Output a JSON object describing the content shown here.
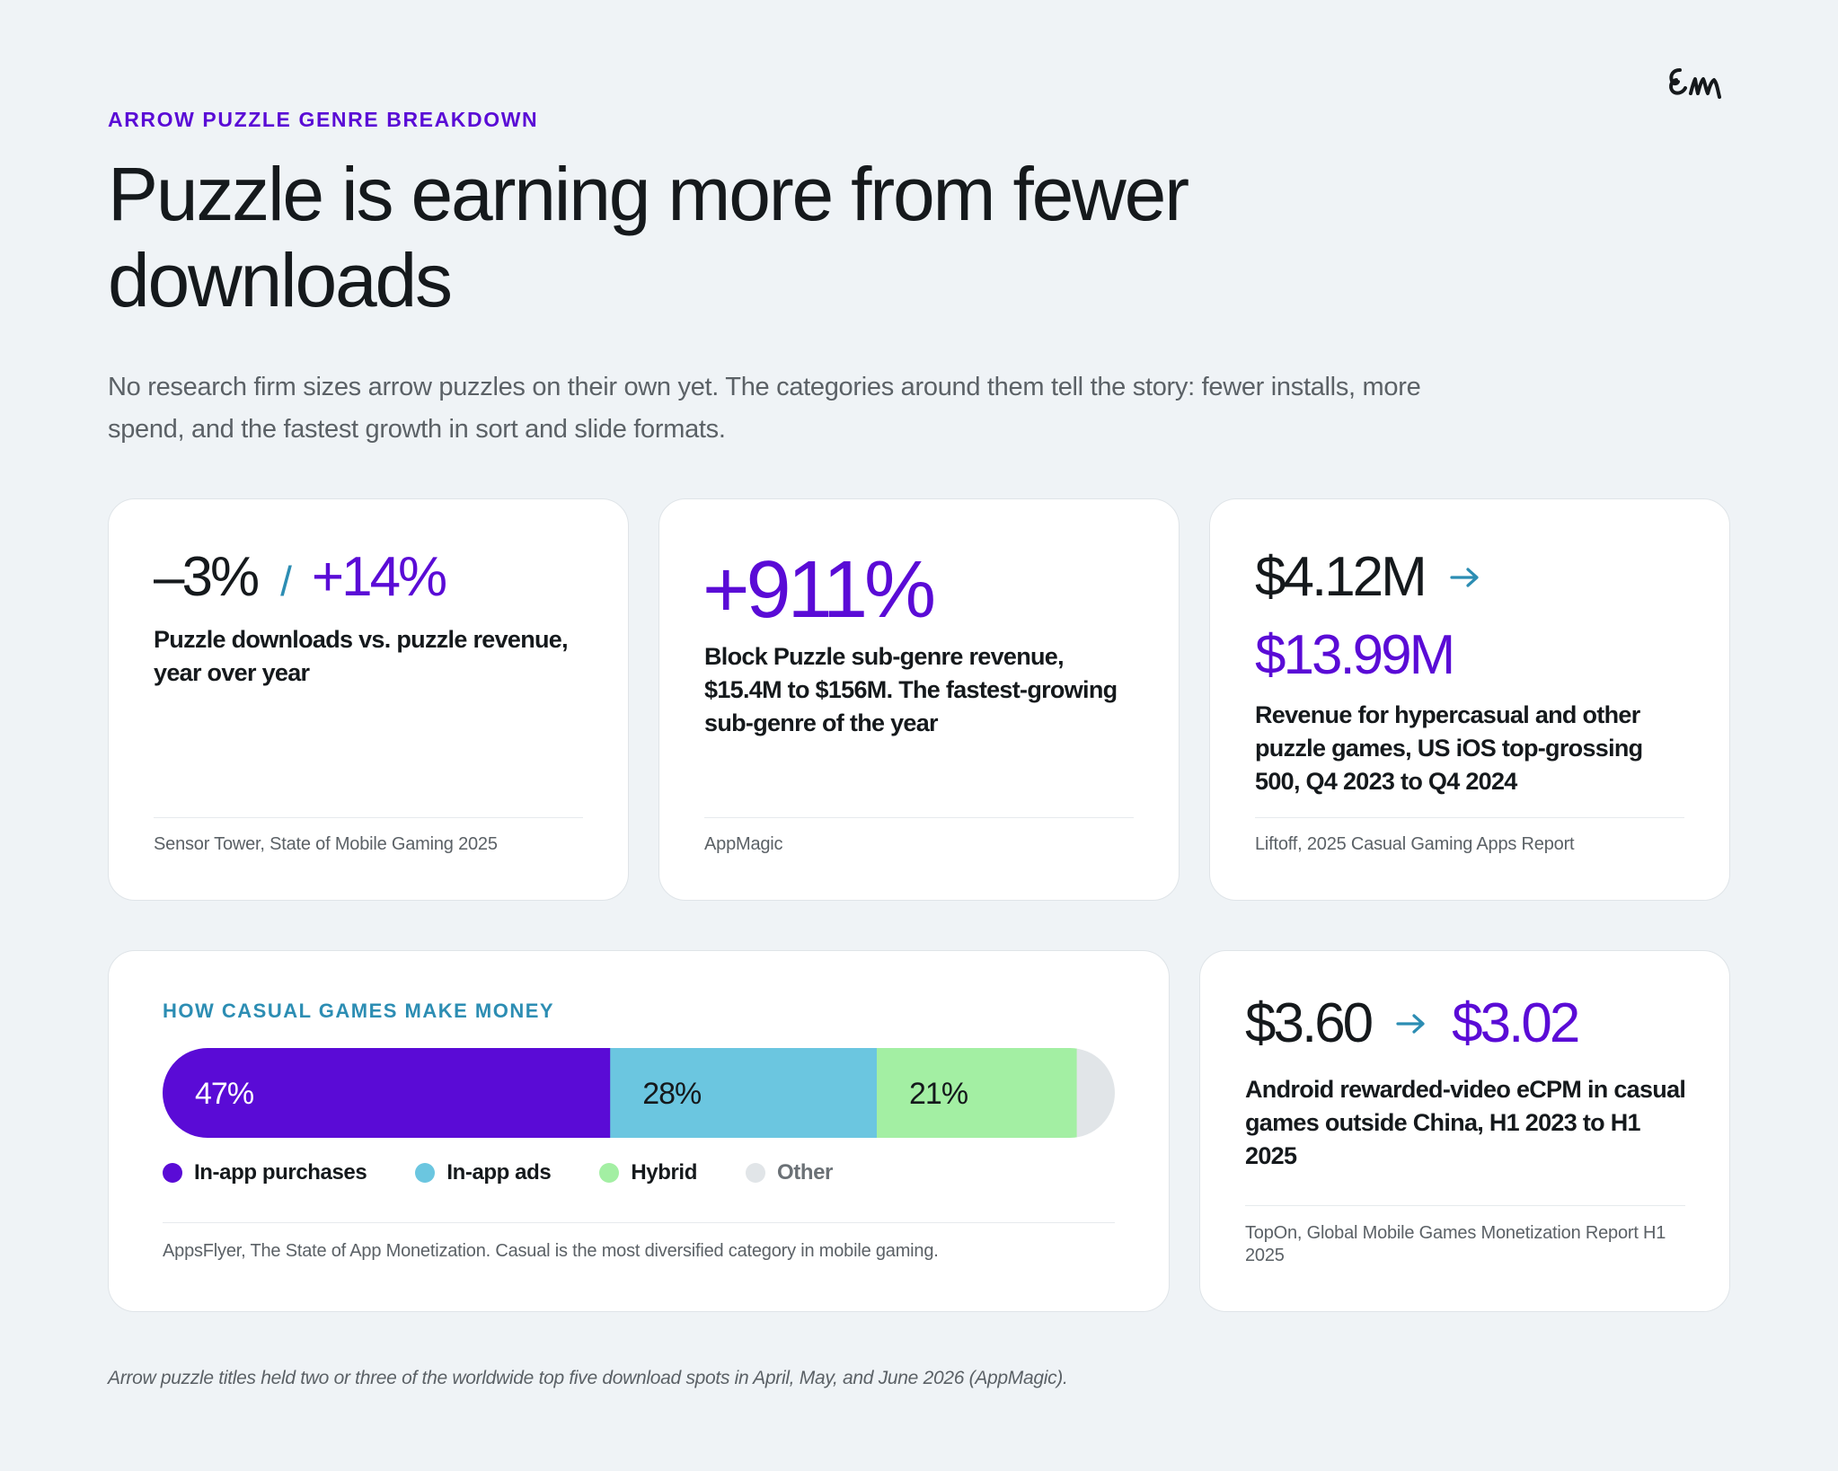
{
  "header": {
    "eyebrow": "ARROW PUZZLE GENRE BREAKDOWN",
    "title": "Puzzle is earning more from fewer downloads",
    "intro": "No research firm sizes arrow puzzles on their own yet. The categories around them tell the story: fewer installs, more spend, and the fastest growth in sort and slide formats.",
    "logo_text": "em"
  },
  "cards": {
    "downloads": {
      "value_a": "–3%",
      "separator": "/",
      "value_b": "+14%",
      "description": "Puzzle downloads vs. puzzle revenue, year over year",
      "source": "Sensor Tower, State of Mobile Gaming 2025"
    },
    "block_puzzle": {
      "value": "+911%",
      "description": "Block Puzzle sub-genre revenue, $15.4M to $156M. The fastest-growing sub-genre of the year",
      "source": "AppMagic"
    },
    "hypercasual": {
      "value_from": "$4.12M",
      "value_to": "$13.99M",
      "description": "Revenue for hypercasual and other puzzle games, US iOS top-grossing 500, Q4 2023 to Q4 2024",
      "source": "Liftoff, 2025 Casual Gaming Apps Report"
    },
    "ecpm": {
      "value_from": "$3.60",
      "value_to": "$3.02",
      "description": "Android rewarded-video eCPM in casual games outside China, H1 2023 to H1 2025",
      "source": "TopOn, Global Mobile Games Monetization Report H1 2025"
    }
  },
  "monetization": {
    "label": "HOW CASUAL GAMES MAKE MONEY",
    "source": "AppsFlyer, The State of App Monetization. Casual is the most diversified category in mobile gaming."
  },
  "chart_data": {
    "type": "bar",
    "orientation": "horizontal-stacked",
    "title": "HOW CASUAL GAMES MAKE MONEY",
    "series": [
      {
        "name": "In-app purchases",
        "value": 47,
        "label": "47%",
        "color": "#5a0bd6",
        "label_color": "#ffffff"
      },
      {
        "name": "In-app ads",
        "value": 28,
        "label": "28%",
        "color": "#6bc6e0",
        "label_color": "#15191c"
      },
      {
        "name": "Hybrid",
        "value": 21,
        "label": "21%",
        "color": "#a3efa3",
        "label_color": "#15191c"
      },
      {
        "name": "Other",
        "value": 4,
        "label": "",
        "color": "#e1e5e8",
        "label_color": "#15191c"
      }
    ],
    "unit": "%",
    "legend_position": "bottom",
    "grid": false
  },
  "footnote": "Arrow puzzle titles held two or three of the worldwide top five download spots in April, May, and June 2026 (AppMagic).",
  "colors": {
    "accent_purple": "#5a0bd6",
    "accent_teal": "#2c8db3",
    "background": "#eff3f6",
    "card": "#ffffff"
  },
  "icons": {
    "arrow": "arrow-right-icon",
    "logo": "brand-logo-icon"
  }
}
